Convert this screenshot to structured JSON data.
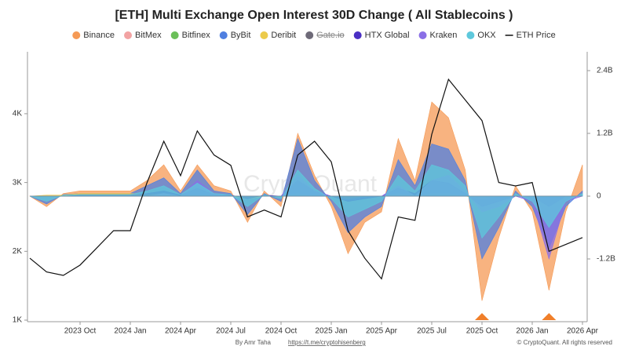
{
  "chart_data": {
    "type": "area-line",
    "title": "[ETH] Multi Exchange Open Interest 30D Change ( All Stablecoins )",
    "watermark": "CryptoQuant",
    "footer_author": "By Amr Taha",
    "footer_link": "https://t.me/cryptohisenberg",
    "footer_copyright": "© CryptoQuant. All rights reserved",
    "x": [
      "2023-07",
      "2023-08",
      "2023-09",
      "2023-10",
      "2023-11",
      "2023-12",
      "2024-01",
      "2024-02",
      "2024-03",
      "2024-04",
      "2024-05",
      "2024-06",
      "2024-07",
      "2024-08",
      "2024-09",
      "2024-10",
      "2024-11",
      "2024-12",
      "2025-01",
      "2025-02",
      "2025-03",
      "2025-04",
      "2025-05",
      "2025-06",
      "2025-07",
      "2025-08",
      "2025-09",
      "2025-10",
      "2025-11",
      "2025-12",
      "2026-01",
      "2026-02",
      "2026-03",
      "2026-04"
    ],
    "xlim": [
      "2023-07",
      "2026-04"
    ],
    "xticks": [
      {
        "value": "2023-10",
        "label": "2023 Oct"
      },
      {
        "value": "2024-01",
        "label": "2024 Jan"
      },
      {
        "value": "2024-04",
        "label": "2024 Apr"
      },
      {
        "value": "2024-07",
        "label": "2024 Jul"
      },
      {
        "value": "2024-10",
        "label": "2024 Oct"
      },
      {
        "value": "2025-01",
        "label": "2025 Jan"
      },
      {
        "value": "2025-04",
        "label": "2025 Apr"
      },
      {
        "value": "2025-07",
        "label": "2025 Jul"
      },
      {
        "value": "2025-10",
        "label": "2025 Oct"
      },
      {
        "value": "2026-01",
        "label": "2026 Jan"
      },
      {
        "value": "2026-04",
        "label": "2026 Apr"
      }
    ],
    "ylim": [
      1000,
      4900
    ],
    "yticks": [
      {
        "value": 1000,
        "label": "1K"
      },
      {
        "value": 2000,
        "label": "2K"
      },
      {
        "value": 3000,
        "label": "3K"
      },
      {
        "value": 4000,
        "label": "4K"
      }
    ],
    "y2lim": [
      -2.37,
      2.76
    ],
    "y2ticks": [
      {
        "value": -1.2,
        "label": "-1.2B"
      },
      0,
      {
        "value": 1.2,
        "label": "1.2B"
      },
      {
        "value": 2.4,
        "label": "2.4B"
      }
    ],
    "markers": [
      "2025-10",
      "2026-02"
    ],
    "marker_color": "#f07f2a",
    "series": [
      {
        "name": "Binance",
        "color": "#f59a55",
        "axis": "y2",
        "values": [
          0,
          -0.2,
          0.05,
          0.1,
          0.1,
          0.1,
          0.1,
          0.3,
          0.6,
          0.1,
          0.6,
          0.2,
          0.1,
          -0.5,
          0.1,
          -0.2,
          1.2,
          0.4,
          -0.2,
          -1.1,
          -0.5,
          -0.3,
          1.1,
          0.3,
          1.8,
          1.5,
          0.5,
          -2.0,
          -0.8,
          0.2,
          -0.3,
          -1.8,
          -0.3,
          0.6
        ]
      },
      {
        "name": "BitMex",
        "color": "#f2a3a3",
        "axis": "y2",
        "values": [
          0,
          0,
          0,
          0.01,
          0.01,
          0.01,
          0.01,
          0.02,
          0.02,
          0,
          0.02,
          0,
          0,
          -0.02,
          0,
          0,
          0.03,
          0.01,
          0,
          -0.02,
          -0.01,
          0,
          0.02,
          0,
          0.03,
          0.02,
          0.01,
          -0.03,
          -0.01,
          0,
          0,
          -0.02,
          0,
          0.01
        ]
      },
      {
        "name": "Bitfinex",
        "color": "#6bbf59",
        "axis": "y2",
        "values": [
          0,
          0,
          0,
          0.01,
          0.01,
          0.01,
          0.01,
          0.01,
          0.02,
          0,
          0.02,
          0,
          0,
          -0.01,
          0,
          0,
          0.02,
          0.01,
          0,
          -0.01,
          -0.01,
          0,
          0.01,
          0,
          0.02,
          0.02,
          0,
          -0.02,
          -0.01,
          0,
          0,
          -0.01,
          0,
          0
        ]
      },
      {
        "name": "ByBit",
        "color": "#4f7fe0",
        "axis": "y2",
        "values": [
          0,
          -0.15,
          0.03,
          0.05,
          0.05,
          0.05,
          0.05,
          0.2,
          0.35,
          0.05,
          0.5,
          0.1,
          0.05,
          -0.35,
          0.05,
          -0.1,
          1.1,
          0.3,
          -0.1,
          -0.7,
          -0.4,
          -0.2,
          0.7,
          0.2,
          1.0,
          0.9,
          0.3,
          -1.2,
          -0.6,
          0.1,
          -0.2,
          -1.0,
          -0.2,
          0.1
        ]
      },
      {
        "name": "Deribit",
        "color": "#eccb4c",
        "axis": "y2",
        "values": [
          0,
          0.02,
          0.02,
          0.05,
          0.05,
          0.05,
          0.05,
          0.03,
          0.05,
          0,
          0.02,
          0,
          0,
          -0.05,
          0,
          0,
          0.05,
          0,
          0,
          -0.05,
          0,
          0,
          0.05,
          0,
          0.05,
          0.05,
          0,
          -0.05,
          0,
          0,
          0,
          0,
          0,
          0
        ]
      },
      {
        "name": "Gate.io",
        "color": "#6e6a78",
        "axis": "y2",
        "hidden": true
      },
      {
        "name": "HTX Global",
        "color": "#4a2fc4",
        "axis": "y2",
        "values": [
          0,
          0,
          0,
          0.02,
          0.02,
          0.02,
          0.02,
          0.05,
          0.1,
          0.02,
          0.15,
          0.03,
          0.02,
          -0.05,
          0.02,
          0,
          0.3,
          0.1,
          0,
          -0.1,
          -0.05,
          0,
          0.15,
          0.05,
          0.3,
          0.25,
          0.05,
          -0.2,
          -0.1,
          0,
          0,
          -0.2,
          0,
          0
        ]
      },
      {
        "name": "Kraken",
        "color": "#8a6fe6",
        "axis": "y2",
        "values": [
          0,
          0,
          0,
          0,
          0,
          0,
          0,
          0,
          0.05,
          0,
          0.3,
          0.05,
          0,
          0,
          0,
          0,
          0.4,
          0.1,
          0,
          0,
          0,
          0,
          0.2,
          0,
          0.3,
          0.4,
          0.1,
          -0.3,
          -0.2,
          0,
          -0.1,
          -1.2,
          -0.1,
          0
        ]
      },
      {
        "name": "OKX",
        "color": "#5ec8dc",
        "axis": "y2",
        "values": [
          0,
          -0.1,
          0.02,
          0.03,
          0.03,
          0.03,
          0.03,
          0.1,
          0.2,
          0.03,
          0.25,
          0.05,
          0.03,
          -0.2,
          0.03,
          -0.05,
          0.5,
          0.15,
          -0.05,
          -0.4,
          -0.25,
          -0.1,
          0.4,
          0.1,
          0.6,
          0.5,
          0.2,
          -0.8,
          -0.4,
          0.05,
          -0.1,
          -0.6,
          -0.1,
          0.05
        ]
      },
      {
        "name": "ETH Price",
        "color": "#111111",
        "axis": "y",
        "line": true,
        "values": [
          1900,
          1700,
          1650,
          1800,
          2050,
          2300,
          2300,
          3000,
          3600,
          3100,
          3750,
          3400,
          3250,
          2500,
          2600,
          2500,
          3400,
          3600,
          3300,
          2300,
          1900,
          1600,
          2500,
          2450,
          3700,
          4500,
          4200,
          3900,
          3000,
          2950,
          3000,
          2000,
          2100,
          2200
        ]
      }
    ]
  }
}
